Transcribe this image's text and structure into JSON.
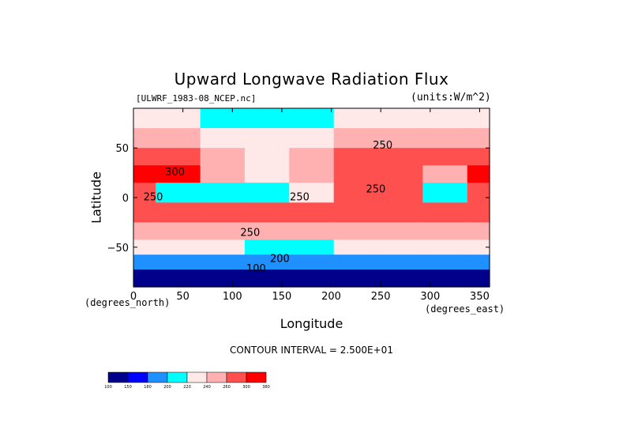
{
  "chart_data": {
    "type": "heatmap",
    "title": "Upward Longwave Radiation Flux",
    "file_label": "[ULWRF_1983-08_NCEP.nc]",
    "units_label": "(units:W/m^2)",
    "xlabel": "Longitude",
    "ylabel": "Latitude",
    "x_unit_label": "(degrees_east)",
    "y_unit_label": "(degrees_north)",
    "xlim": [
      0,
      360
    ],
    "ylim": [
      -90,
      90
    ],
    "x_ticks": [
      0,
      50,
      100,
      150,
      200,
      250,
      300,
      350
    ],
    "x_tick_labels": [
      "0",
      "50",
      "100",
      "150",
      "200",
      "250",
      "300",
      "350"
    ],
    "y_ticks": [
      50,
      0,
      -50
    ],
    "y_tick_labels": [
      "50",
      "0",
      "−50"
    ],
    "contour_interval_label": "CONTOUR INTERVAL = 2.500E+01",
    "contour_labels": [
      {
        "text": "250",
        "lon": 252,
        "lat": 52
      },
      {
        "text": "250",
        "lon": 245,
        "lat": 8
      },
      {
        "text": "250",
        "lon": 168,
        "lat": 0
      },
      {
        "text": "250",
        "lon": 20,
        "lat": 0
      },
      {
        "text": "250",
        "lon": 118,
        "lat": -36
      },
      {
        "text": "200",
        "lon": 148,
        "lat": -62
      },
      {
        "text": "100",
        "lon": 124,
        "lat": -72
      },
      {
        "text": "300",
        "lon": 42,
        "lat": 25
      }
    ],
    "colorbar": {
      "levels": [
        "100",
        "150",
        "180",
        "200",
        "220",
        "240",
        "260",
        "300",
        "380"
      ],
      "colors": [
        "#00008b",
        "#0000ff",
        "#1e90ff",
        "#00ffff",
        "#ffe8e8",
        "#ffb0b0",
        "#ff5050",
        "#ff0000"
      ]
    },
    "series": [
      {
        "lat": 80,
        "lon": [
          0,
          45,
          90,
          135,
          180,
          225,
          270,
          315,
          360
        ],
        "values": [
          228,
          222,
          215,
          212,
          218,
          222,
          226,
          230,
          228
        ]
      },
      {
        "lat": 60,
        "lon": [
          0,
          45,
          90,
          135,
          180,
          225,
          270,
          315,
          360
        ],
        "values": [
          245,
          250,
          235,
          225,
          230,
          240,
          252,
          248,
          245
        ]
      },
      {
        "lat": 40,
        "lon": [
          0,
          45,
          90,
          135,
          180,
          225,
          270,
          315,
          360
        ],
        "values": [
          270,
          265,
          255,
          230,
          245,
          260,
          270,
          262,
          270
        ]
      },
      {
        "lat": 25,
        "lon": [
          0,
          45,
          90,
          135,
          180,
          225,
          270,
          315,
          360
        ],
        "values": [
          310,
          300,
          240,
          230,
          255,
          270,
          285,
          245,
          305
        ]
      },
      {
        "lat": 5,
        "lon": [
          0,
          45,
          90,
          135,
          180,
          225,
          270,
          315,
          360
        ],
        "values": [
          265,
          210,
          205,
          200,
          225,
          265,
          270,
          205,
          265
        ]
      },
      {
        "lat": -15,
        "lon": [
          0,
          45,
          90,
          135,
          180,
          225,
          270,
          315,
          360
        ],
        "values": [
          280,
          275,
          272,
          268,
          270,
          278,
          282,
          290,
          280
        ]
      },
      {
        "lat": -35,
        "lon": [
          0,
          45,
          90,
          135,
          180,
          225,
          270,
          315,
          360
        ],
        "values": [
          255,
          255,
          252,
          250,
          250,
          252,
          255,
          255,
          255
        ]
      },
      {
        "lat": -50,
        "lon": [
          0,
          45,
          90,
          135,
          180,
          225,
          270,
          315,
          360
        ],
        "values": [
          222,
          222,
          220,
          218,
          218,
          220,
          222,
          222,
          222
        ]
      },
      {
        "lat": -65,
        "lon": [
          0,
          45,
          90,
          135,
          180,
          225,
          270,
          315,
          360
        ],
        "values": [
          190,
          185,
          182,
          180,
          180,
          182,
          185,
          188,
          190
        ]
      },
      {
        "lat": -80,
        "lon": [
          0,
          45,
          90,
          135,
          180,
          225,
          270,
          315,
          360
        ],
        "values": [
          130,
          125,
          120,
          115,
          115,
          118,
          120,
          125,
          130
        ]
      }
    ]
  }
}
